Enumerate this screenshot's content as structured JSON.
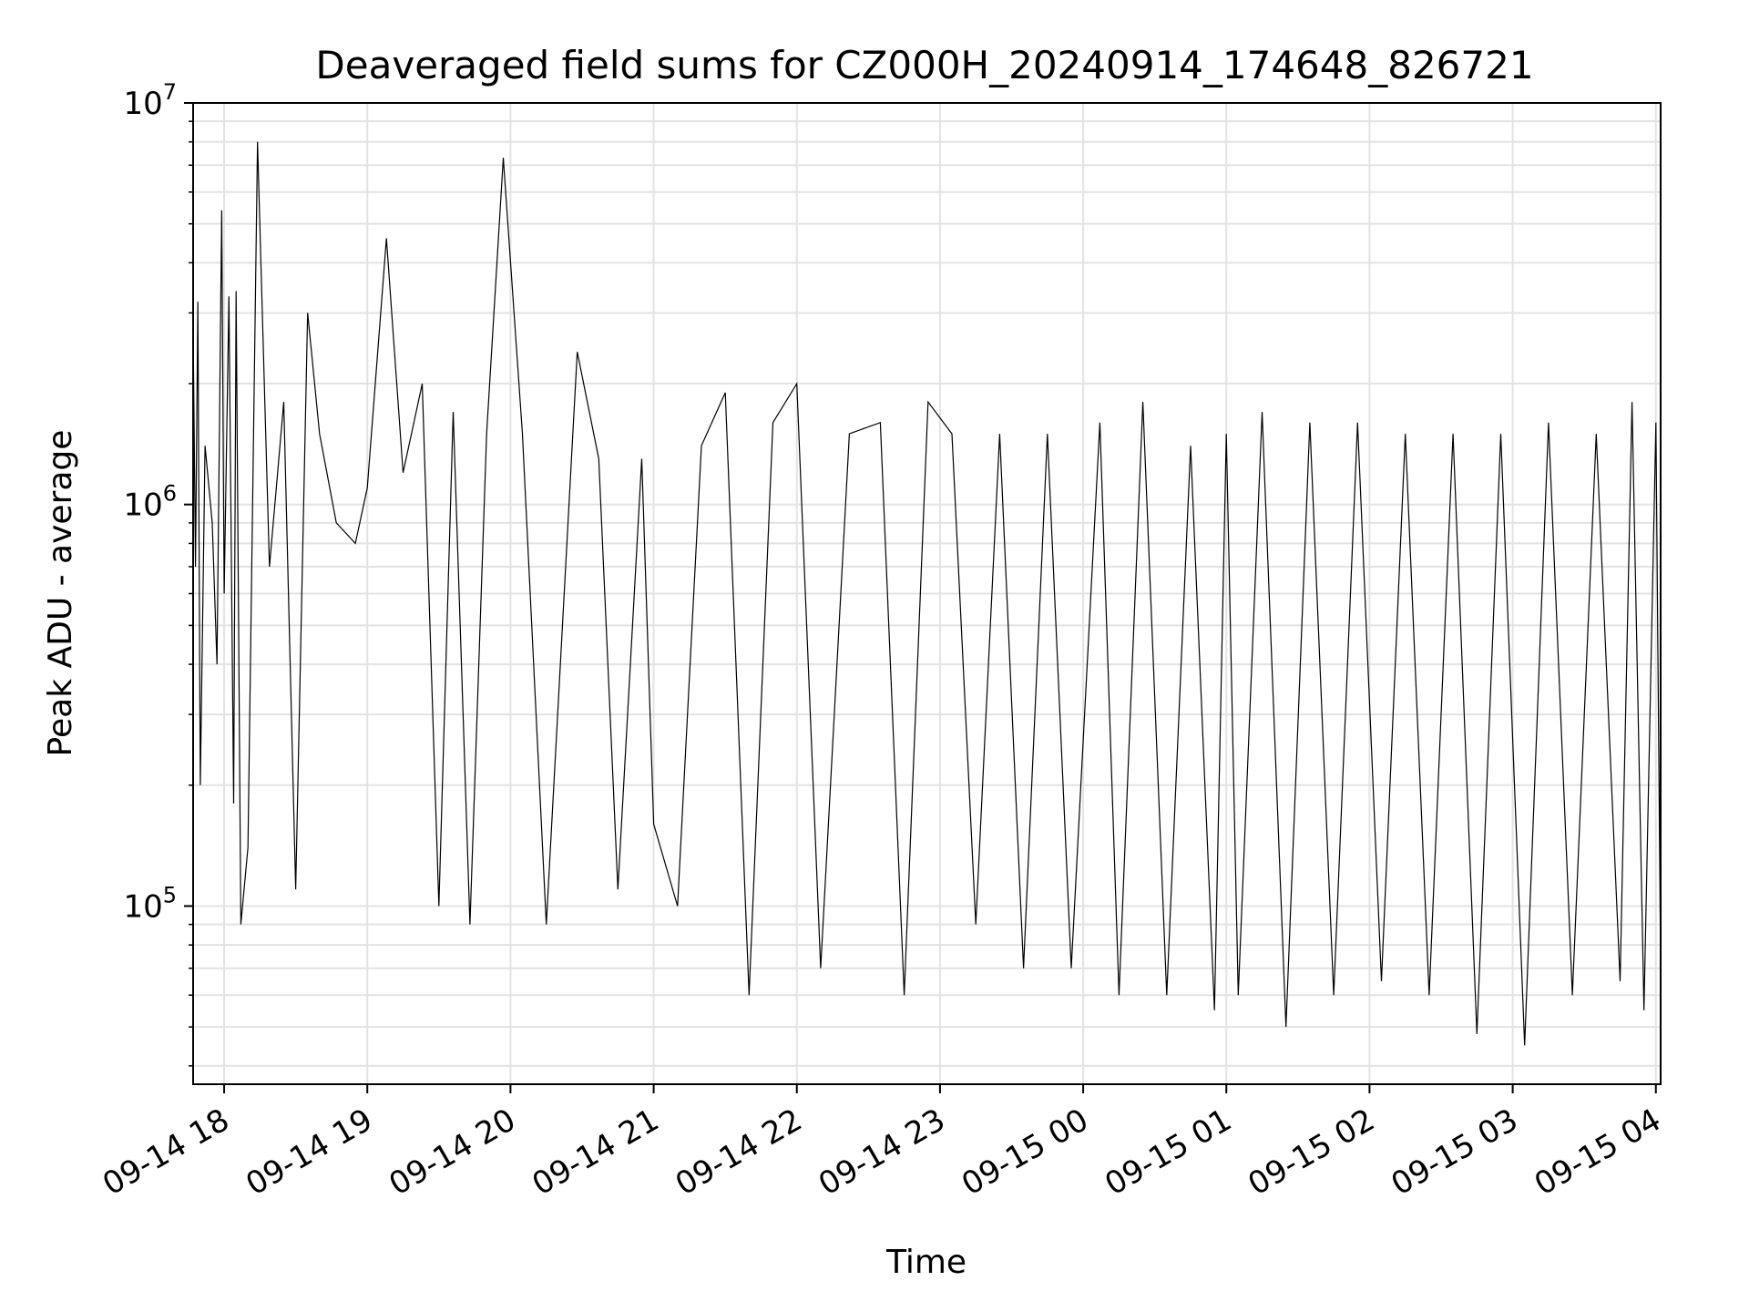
{
  "chart_data": {
    "type": "line",
    "title": "Deaveraged field sums for CZ000H_20240914_174648_826721",
    "xlabel": "Time",
    "ylabel": "Peak ADU - average",
    "yscale": "log",
    "ylim": [
      36000,
      10000000
    ],
    "xlim": [
      "2024-09-14T17:47:00",
      "2024-09-15T04:02:00"
    ],
    "grid": true,
    "legend": "none",
    "line_color": "#000000",
    "x_ticks": [
      {
        "value": "2024-09-14T18:00:00",
        "label": "09-14 18"
      },
      {
        "value": "2024-09-14T19:00:00",
        "label": "09-14 19"
      },
      {
        "value": "2024-09-14T20:00:00",
        "label": "09-14 20"
      },
      {
        "value": "2024-09-14T21:00:00",
        "label": "09-14 21"
      },
      {
        "value": "2024-09-14T22:00:00",
        "label": "09-14 22"
      },
      {
        "value": "2024-09-14T23:00:00",
        "label": "09-14 23"
      },
      {
        "value": "2024-09-15T00:00:00",
        "label": "09-15 00"
      },
      {
        "value": "2024-09-15T01:00:00",
        "label": "09-15 01"
      },
      {
        "value": "2024-09-15T02:00:00",
        "label": "09-15 02"
      },
      {
        "value": "2024-09-15T03:00:00",
        "label": "09-15 03"
      },
      {
        "value": "2024-09-15T04:00:00",
        "label": "09-15 04"
      }
    ],
    "y_ticks": [
      {
        "value": 100000,
        "base": "10",
        "exp": "5"
      },
      {
        "value": 1000000,
        "base": "10",
        "exp": "6"
      },
      {
        "value": 10000000,
        "base": "10",
        "exp": "7"
      }
    ],
    "series": [
      {
        "x": [
          "2024-09-14T17:47:00",
          "2024-09-14T17:48:00",
          "2024-09-14T17:49:00",
          "2024-09-14T17:50:00",
          "2024-09-14T17:52:00",
          "2024-09-14T17:55:00",
          "2024-09-14T17:57:00",
          "2024-09-14T17:59:00",
          "2024-09-14T18:00:00",
          "2024-09-14T18:02:00",
          "2024-09-14T18:04:00",
          "2024-09-14T18:05:00",
          "2024-09-14T18:07:00",
          "2024-09-14T18:10:00",
          "2024-09-14T18:14:00",
          "2024-09-14T18:19:00",
          "2024-09-14T18:25:00",
          "2024-09-14T18:30:00",
          "2024-09-14T18:35:00",
          "2024-09-14T18:40:00",
          "2024-09-14T18:47:00",
          "2024-09-14T18:55:00",
          "2024-09-14T19:00:00",
          "2024-09-14T19:08:00",
          "2024-09-14T19:15:00",
          "2024-09-14T19:23:00",
          "2024-09-14T19:30:00",
          "2024-09-14T19:36:00",
          "2024-09-14T19:43:00",
          "2024-09-14T19:50:00",
          "2024-09-14T19:57:00",
          "2024-09-14T20:05:00",
          "2024-09-14T20:15:00",
          "2024-09-14T20:28:00",
          "2024-09-14T20:37:00",
          "2024-09-14T20:45:00",
          "2024-09-14T20:55:00",
          "2024-09-14T21:00:00",
          "2024-09-14T21:10:00",
          "2024-09-14T21:20:00",
          "2024-09-14T21:30:00",
          "2024-09-14T21:40:00",
          "2024-09-14T21:50:00",
          "2024-09-14T22:00:00",
          "2024-09-14T22:10:00",
          "2024-09-14T22:22:00",
          "2024-09-14T22:35:00",
          "2024-09-14T22:45:00",
          "2024-09-14T22:55:00",
          "2024-09-14T23:05:00",
          "2024-09-14T23:15:00",
          "2024-09-14T23:25:00",
          "2024-09-14T23:35:00",
          "2024-09-14T23:45:00",
          "2024-09-14T23:55:00",
          "2024-09-15T00:07:00",
          "2024-09-15T00:15:00",
          "2024-09-15T00:25:00",
          "2024-09-15T00:35:00",
          "2024-09-15T00:45:00",
          "2024-09-15T00:55:00",
          "2024-09-15T01:00:00",
          "2024-09-15T01:05:00",
          "2024-09-15T01:15:00",
          "2024-09-15T01:25:00",
          "2024-09-15T01:35:00",
          "2024-09-15T01:45:00",
          "2024-09-15T01:55:00",
          "2024-09-15T02:05:00",
          "2024-09-15T02:15:00",
          "2024-09-15T02:25:00",
          "2024-09-15T02:35:00",
          "2024-09-15T02:45:00",
          "2024-09-15T02:55:00",
          "2024-09-15T03:05:00",
          "2024-09-15T03:15:00",
          "2024-09-15T03:25:00",
          "2024-09-15T03:35:00",
          "2024-09-15T03:45:00",
          "2024-09-15T03:50:00",
          "2024-09-15T03:55:00",
          "2024-09-15T04:00:00",
          "2024-09-15T04:02:00"
        ],
        "y": [
          2800000,
          700000,
          3200000,
          200000,
          1400000,
          900000,
          400000,
          5400000,
          600000,
          3300000,
          180000,
          3400000,
          90000,
          140000,
          8000000,
          700000,
          1800000,
          110000,
          3000000,
          1500000,
          900000,
          800000,
          1100000,
          4600000,
          1200000,
          2000000,
          100000,
          1700000,
          90000,
          1500000,
          7300000,
          1500000,
          90000,
          2400000,
          1300000,
          110000,
          1300000,
          160000,
          100000,
          1400000,
          1900000,
          60000,
          1600000,
          2000000,
          70000,
          1500000,
          1600000,
          60000,
          1800000,
          1500000,
          90000,
          1500000,
          70000,
          1500000,
          70000,
          1600000,
          60000,
          1800000,
          60000,
          1400000,
          55000,
          1500000,
          60000,
          1700000,
          50000,
          1600000,
          60000,
          1600000,
          65000,
          1500000,
          60000,
          1500000,
          48000,
          1500000,
          45000,
          1600000,
          60000,
          1500000,
          65000,
          1800000,
          55000,
          1600000,
          70000
        ]
      }
    ]
  }
}
